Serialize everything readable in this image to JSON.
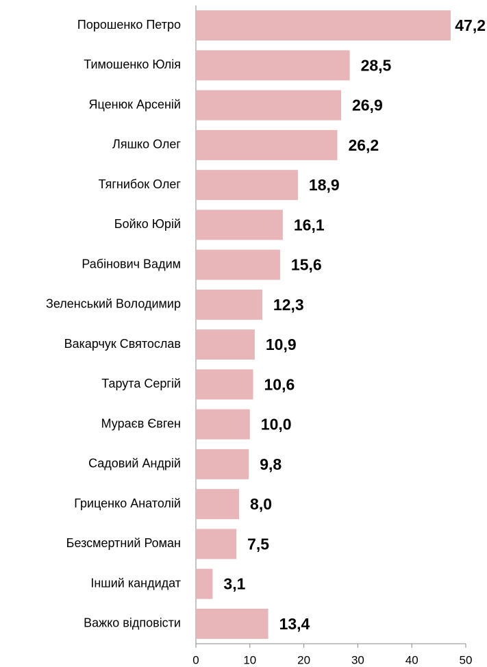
{
  "chart_data": {
    "type": "bar",
    "orientation": "horizontal",
    "categories": [
      "Порошенко Петро",
      "Тимошенко Юлія",
      "Яценюк Арсеній",
      "Ляшко Олег",
      "Тягнибок Олег",
      "Бойко Юрій",
      "Рабінович Вадим",
      "Зеленський Володимир",
      "Вакарчук Святослав",
      "Тарута Сергій",
      "Мураєв Євген",
      "Садовий Андрій",
      "Гриценко Анатолій",
      "Безсмертний Роман",
      "Інший кандидат",
      "Важко відповісти"
    ],
    "values": [
      47.2,
      28.5,
      26.9,
      26.2,
      18.9,
      16.1,
      15.6,
      12.3,
      10.9,
      10.6,
      10.0,
      9.8,
      8.0,
      7.5,
      3.1,
      13.4
    ],
    "value_labels": [
      "47,2",
      "28,5",
      "26,9",
      "26,2",
      "18,9",
      "16,1",
      "15,6",
      "12,3",
      "10,9",
      "10,6",
      "10,0",
      "9,8",
      "8,0",
      "7,5",
      "3,1",
      "13,4"
    ],
    "color": "#e8b6b9",
    "xlim": [
      0,
      50
    ],
    "xticks": [
      0,
      10,
      20,
      30,
      40,
      50
    ]
  }
}
